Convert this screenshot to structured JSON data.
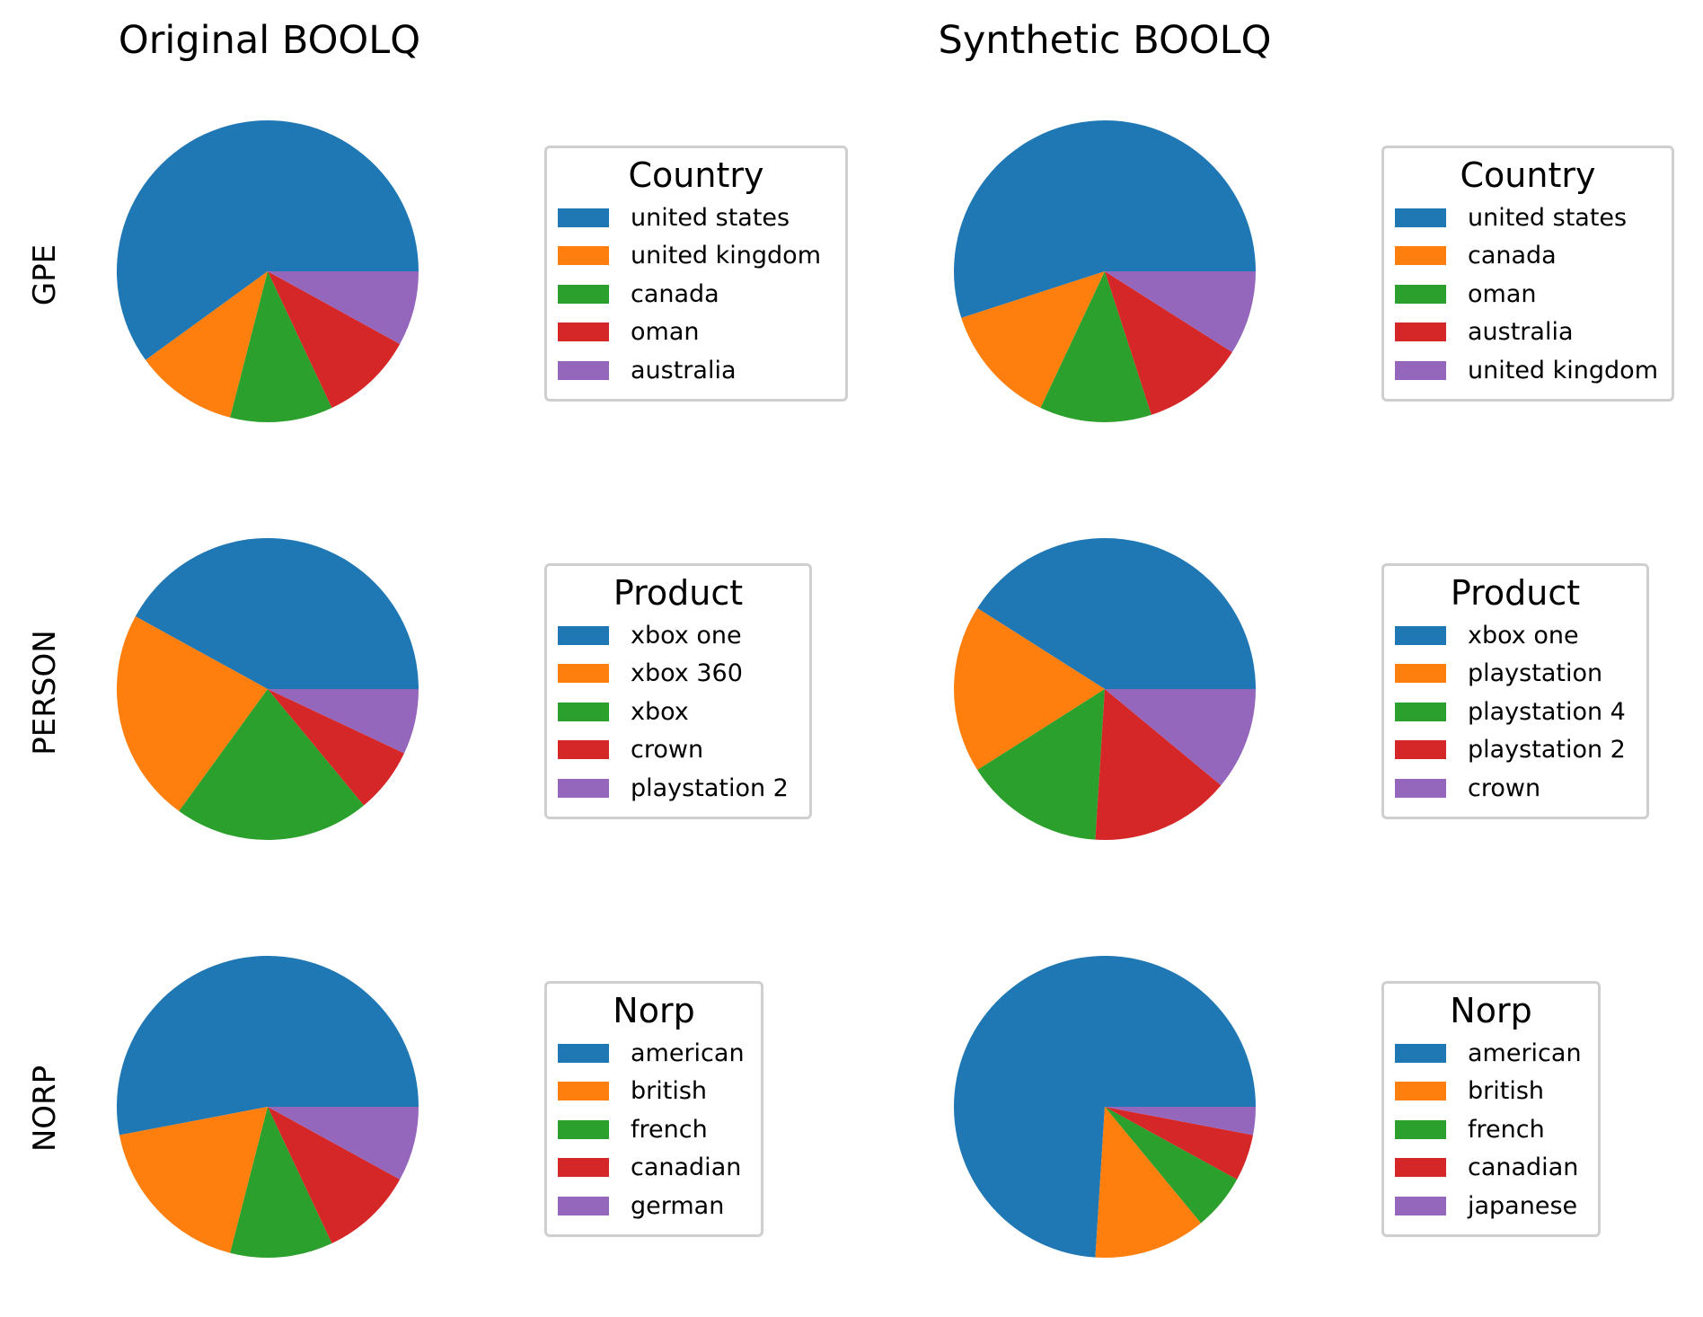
{
  "chart_data": [
    {
      "type": "pie",
      "title": "",
      "column_title": "Original BOOLQ",
      "row_label": "GPE",
      "legend_title": "Country",
      "legend_position": "right",
      "labels": [
        "united states",
        "united kingdom",
        "canada",
        "oman",
        "australia"
      ],
      "values": [
        60,
        11,
        11,
        10,
        8
      ]
    },
    {
      "type": "pie",
      "title": "",
      "column_title": "Synthetic BOOLQ",
      "row_label": "GPE",
      "legend_title": "Country",
      "legend_position": "right",
      "labels": [
        "united states",
        "canada",
        "oman",
        "australia",
        "united kingdom"
      ],
      "values": [
        55,
        13,
        12,
        11,
        9
      ]
    },
    {
      "type": "pie",
      "title": "",
      "column_title": "Original BOOLQ",
      "row_label": "PERSON",
      "legend_title": "Product",
      "legend_position": "right",
      "labels": [
        "xbox one",
        "xbox 360",
        "xbox",
        "crown",
        "playstation 2"
      ],
      "values": [
        42,
        23,
        21,
        7,
        7
      ]
    },
    {
      "type": "pie",
      "title": "",
      "column_title": "Synthetic BOOLQ",
      "row_label": "PERSON",
      "legend_title": "Product",
      "legend_position": "right",
      "labels": [
        "xbox one",
        "playstation",
        "playstation 4",
        "playstation 2",
        "crown"
      ],
      "values": [
        41,
        18,
        15,
        15,
        11
      ]
    },
    {
      "type": "pie",
      "title": "",
      "column_title": "Original BOOLQ",
      "row_label": "NORP",
      "legend_title": "Norp",
      "legend_position": "right",
      "labels": [
        "american",
        "british",
        "french",
        "canadian",
        "german"
      ],
      "values": [
        53,
        18,
        11,
        10,
        8
      ]
    },
    {
      "type": "pie",
      "title": "",
      "column_title": "Synthetic BOOLQ",
      "row_label": "NORP",
      "legend_title": "Norp",
      "legend_position": "right",
      "labels": [
        "american",
        "british",
        "french",
        "canadian",
        "japanese"
      ],
      "values": [
        74,
        12,
        6,
        5,
        3
      ]
    }
  ],
  "colors": [
    "#1f77b4",
    "#ff7f0e",
    "#2ca02c",
    "#d62728",
    "#9467bd"
  ],
  "column_titles": [
    "Original BOOLQ",
    "Synthetic BOOLQ"
  ],
  "row_labels": [
    "GPE",
    "PERSON",
    "NORP"
  ]
}
